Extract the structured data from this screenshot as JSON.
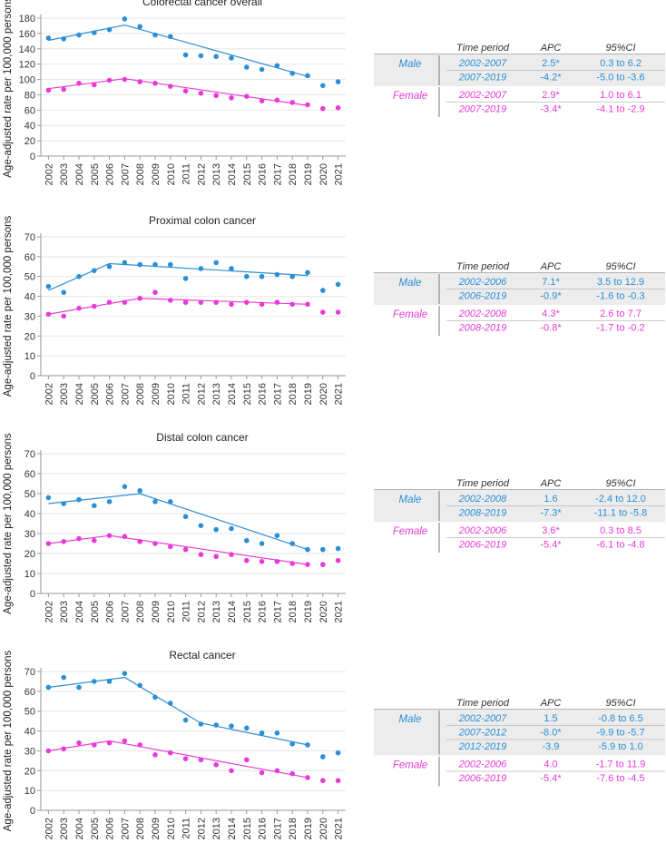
{
  "colors": {
    "male": "#2b8fd6",
    "female": "#e83ad6",
    "axis": "#999999",
    "grid": "#e6e6e6",
    "shade": "#ececec"
  },
  "ylabel": "Age-adjusted rate per 100,000 persons",
  "table_headers": {
    "period": "Time period",
    "apc": "APC",
    "ci": "95%CI"
  },
  "chart_data": [
    {
      "type": "scatter",
      "title": "Colorectal cancer overall",
      "ylabel": "Age-adjusted rate per 100,000 persons",
      "ylim": [
        0,
        180
      ],
      "yticks": [
        0,
        20,
        40,
        60,
        80,
        100,
        120,
        140,
        160,
        180
      ],
      "x": [
        "2002",
        "2003",
        "2004",
        "2005",
        "2006",
        "2007",
        "2008",
        "2009",
        "2010",
        "2011",
        "2012",
        "2013",
        "2014",
        "2015",
        "2016",
        "2017",
        "2018",
        "2019",
        "2020",
        "2021"
      ],
      "series": [
        {
          "name": "Male",
          "color": "#2b8fd6",
          "values": [
            154,
            153,
            158,
            161,
            165,
            179,
            169,
            158,
            156,
            132,
            131,
            130,
            128,
            116,
            113,
            118,
            108,
            105,
            92,
            97
          ],
          "trend": [
            [
              2002,
              151
            ],
            [
              2007,
              171
            ],
            [
              2019,
              104
            ]
          ]
        },
        {
          "name": "Female",
          "color": "#e83ad6",
          "values": [
            86,
            87,
            95,
            93,
            99,
            100,
            97,
            95,
            91,
            85,
            82,
            79,
            76,
            78,
            72,
            73,
            70,
            67,
            62,
            63
          ],
          "trend": [
            [
              2002,
              88
            ],
            [
              2007,
              101
            ],
            [
              2019,
              66
            ]
          ]
        }
      ],
      "table": [
        {
          "group": "Male",
          "rows": [
            {
              "period": "2002-2007",
              "apc": "2.5*",
              "ci": "0.3 to 6.2"
            },
            {
              "period": "2007-2019",
              "apc": "-4.2*",
              "ci": "-5.0 to -3.6"
            }
          ]
        },
        {
          "group": "Female",
          "rows": [
            {
              "period": "2002-2007",
              "apc": "2.9*",
              "ci": "1.0 to 6.1"
            },
            {
              "period": "2007-2019",
              "apc": "-3.4*",
              "ci": "-4.1 to -2.9"
            }
          ]
        }
      ]
    },
    {
      "type": "scatter",
      "title": "Proximal colon cancer",
      "ylabel": "Age-adjusted rate per 100,000 persons",
      "ylim": [
        0,
        70
      ],
      "yticks": [
        0,
        10,
        20,
        30,
        40,
        50,
        60,
        70
      ],
      "x": [
        "2002",
        "2003",
        "2004",
        "2005",
        "2006",
        "2007",
        "2008",
        "2009",
        "2010",
        "2011",
        "2012",
        "2013",
        "2014",
        "2015",
        "2016",
        "2017",
        "2018",
        "2019",
        "2020",
        "2021"
      ],
      "series": [
        {
          "name": "Male",
          "color": "#2b8fd6",
          "values": [
            45,
            42,
            50,
            53,
            55,
            57,
            56,
            56,
            56,
            49,
            54,
            57,
            54,
            50,
            50,
            51,
            50,
            52,
            43,
            46
          ],
          "trend": [
            [
              2002,
              43
            ],
            [
              2006,
              56.5
            ],
            [
              2019,
              50.5
            ]
          ]
        },
        {
          "name": "Female",
          "color": "#e83ad6",
          "values": [
            31,
            30,
            34,
            35,
            37,
            37,
            39,
            42,
            38,
            37,
            37,
            37,
            36,
            37,
            36,
            37,
            36,
            36,
            32,
            32
          ],
          "trend": [
            [
              2002,
              31
            ],
            [
              2008,
              39
            ],
            [
              2019,
              36
            ]
          ]
        }
      ],
      "table": [
        {
          "group": "Male",
          "rows": [
            {
              "period": "2002-2006",
              "apc": "7.1*",
              "ci": "3.5 to 12.9"
            },
            {
              "period": "2006-2019",
              "apc": "-0.9*",
              "ci": "-1.6 to -0.3"
            }
          ]
        },
        {
          "group": "Female",
          "rows": [
            {
              "period": "2002-2008",
              "apc": "4.3*",
              "ci": "2.6 to 7.7"
            },
            {
              "period": "2008-2019",
              "apc": "-0.8*",
              "ci": "-1.7 to -0.2"
            }
          ]
        }
      ]
    },
    {
      "type": "scatter",
      "title": "Distal colon cancer",
      "ylabel": "Age-adjusted rate per 100,000 persons",
      "ylim": [
        0,
        70
      ],
      "yticks": [
        0,
        10,
        20,
        30,
        40,
        50,
        60,
        70
      ],
      "x": [
        "2002",
        "2003",
        "2004",
        "2005",
        "2006",
        "2007",
        "2008",
        "2009",
        "2010",
        "2011",
        "2012",
        "2013",
        "2014",
        "2015",
        "2016",
        "2017",
        "2018",
        "2019",
        "2020",
        "2021"
      ],
      "series": [
        {
          "name": "Male",
          "color": "#2b8fd6",
          "values": [
            48,
            45,
            47,
            44,
            46,
            53.5,
            51.5,
            46,
            46,
            38.5,
            34,
            32,
            32.5,
            26.5,
            25,
            29,
            25,
            22,
            22,
            22.5
          ],
          "trend": [
            [
              2002,
              45
            ],
            [
              2008,
              50
            ],
            [
              2019,
              22
            ]
          ]
        },
        {
          "name": "Female",
          "color": "#e83ad6",
          "values": [
            25,
            26,
            27.5,
            26.5,
            29,
            28.5,
            26,
            25,
            23.5,
            22,
            19.5,
            18.5,
            19.5,
            16.5,
            16,
            16,
            15,
            14.5,
            14.5,
            16.5
          ],
          "trend": [
            [
              2002,
              25
            ],
            [
              2006,
              29
            ],
            [
              2019,
              14.5
            ]
          ]
        }
      ],
      "table": [
        {
          "group": "Male",
          "rows": [
            {
              "period": "2002-2008",
              "apc": "1.6",
              "ci": "-2.4 to 12.0"
            },
            {
              "period": "2008-2019",
              "apc": "-7.3*",
              "ci": "-11.1 to -5.8"
            }
          ]
        },
        {
          "group": "Female",
          "rows": [
            {
              "period": "2002-2006",
              "apc": "3.6*",
              "ci": "0.3 to 8.5"
            },
            {
              "period": "2006-2019",
              "apc": "-5.4*",
              "ci": "-6.1 to -4.8"
            }
          ]
        }
      ]
    },
    {
      "type": "scatter",
      "title": "Rectal cancer",
      "ylabel": "Age-adjusted rate per 100,000 persons",
      "ylim": [
        0,
        70
      ],
      "yticks": [
        0,
        10,
        20,
        30,
        40,
        50,
        60,
        70
      ],
      "x": [
        "2002",
        "2003",
        "2004",
        "2005",
        "2006",
        "2007",
        "2008",
        "2009",
        "2010",
        "2011",
        "2012",
        "2013",
        "2014",
        "2015",
        "2016",
        "2017",
        "2018",
        "2019",
        "2020",
        "2021"
      ],
      "series": [
        {
          "name": "Male",
          "color": "#2b8fd6",
          "values": [
            62,
            67,
            62,
            65,
            65,
            69,
            63,
            57,
            54,
            45.5,
            43.5,
            43,
            42.5,
            41.5,
            39,
            39,
            33.5,
            33,
            27,
            29
          ],
          "trend": [
            [
              2002,
              62
            ],
            [
              2007,
              67
            ],
            [
              2012,
              44
            ],
            [
              2019,
              33
            ]
          ]
        },
        {
          "name": "Female",
          "color": "#e83ad6",
          "values": [
            30,
            31,
            34,
            33,
            34,
            35,
            33,
            28,
            29,
            26,
            25.5,
            23,
            20,
            25.5,
            19,
            20,
            18.5,
            16.5,
            15,
            15
          ],
          "trend": [
            [
              2002,
              30
            ],
            [
              2006,
              35
            ],
            [
              2019,
              16.5
            ]
          ]
        }
      ],
      "table": [
        {
          "group": "Male",
          "rows": [
            {
              "period": "2002-2007",
              "apc": "1.5",
              "ci": "-0.8 to 6.5"
            },
            {
              "period": "2007-2012",
              "apc": "-8.0*",
              "ci": "-9.9 to -5.7"
            },
            {
              "period": "2012-2019",
              "apc": "-3.9",
              "ci": "-5.9 to 1.0"
            }
          ]
        },
        {
          "group": "Female",
          "rows": [
            {
              "period": "2002-2006",
              "apc": "4.0",
              "ci": "-1.7 to 11.9"
            },
            {
              "period": "2006-2019",
              "apc": "-5.4*",
              "ci": "-7.6 to -4.5"
            }
          ]
        }
      ]
    }
  ]
}
